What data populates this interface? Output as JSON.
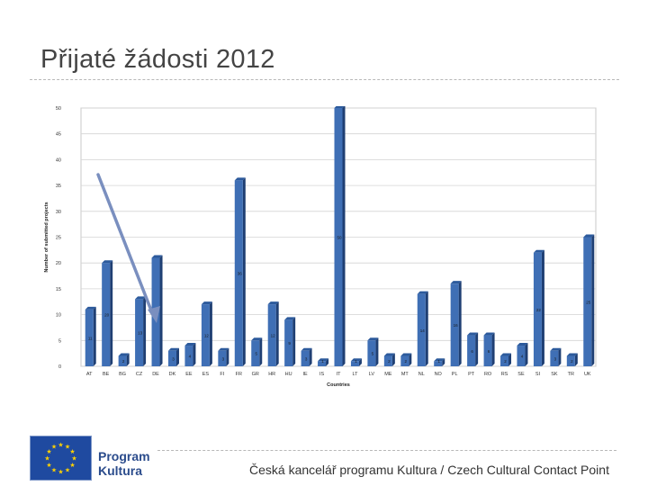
{
  "slide": {
    "title": "Přijaté žádosti 2012",
    "footer": "Česká kancelář programu Kultura / Czech Cultural Contact Point",
    "logo_line1": "Program",
    "logo_line2": "Kultura"
  },
  "colors": {
    "bar": "#3f6fb5",
    "bar_top": "#2c5a9c",
    "bar_side": "#1f3f73",
    "arrow": "#7a8fbf",
    "logo_blue": "#1f4aa0",
    "star": "#ffd200"
  },
  "chart_data": {
    "type": "bar",
    "xlabel": "Countries",
    "ylabel": "Number of submitted projects",
    "ylim": [
      0,
      50
    ],
    "yticks": [
      "0",
      "5",
      "10",
      "15",
      "20",
      "25",
      "30",
      "35",
      "40",
      "45",
      "50"
    ],
    "grid": true,
    "categories": [
      "AT",
      "BE",
      "BG",
      "CZ",
      "DE",
      "DK",
      "EE",
      "ES",
      "FI",
      "FR",
      "GR",
      "HR",
      "HU",
      "IE",
      "IS",
      "IT",
      "LT",
      "LV",
      "ME",
      "MT",
      "NL",
      "NO",
      "PL",
      "PT",
      "RO",
      "RS",
      "SE",
      "SI",
      "SK",
      "TR",
      "UK"
    ],
    "values": [
      11,
      20,
      2,
      13,
      21,
      3,
      4,
      12,
      3,
      36,
      5,
      12,
      9,
      3,
      1,
      50,
      1,
      5,
      2,
      2,
      14,
      1,
      16,
      6,
      6,
      2,
      4,
      22,
      3,
      2,
      25
    ],
    "data_labels": [
      "11",
      "20",
      "2",
      "13",
      "21",
      "3",
      "4",
      "12",
      "3",
      "36",
      "5",
      "12",
      "9",
      "3",
      "1",
      "50",
      "1",
      "5",
      "2",
      "2",
      "14",
      "1",
      "16",
      "6",
      "6",
      "2",
      "4",
      "22",
      "3",
      "2",
      "25"
    ]
  }
}
